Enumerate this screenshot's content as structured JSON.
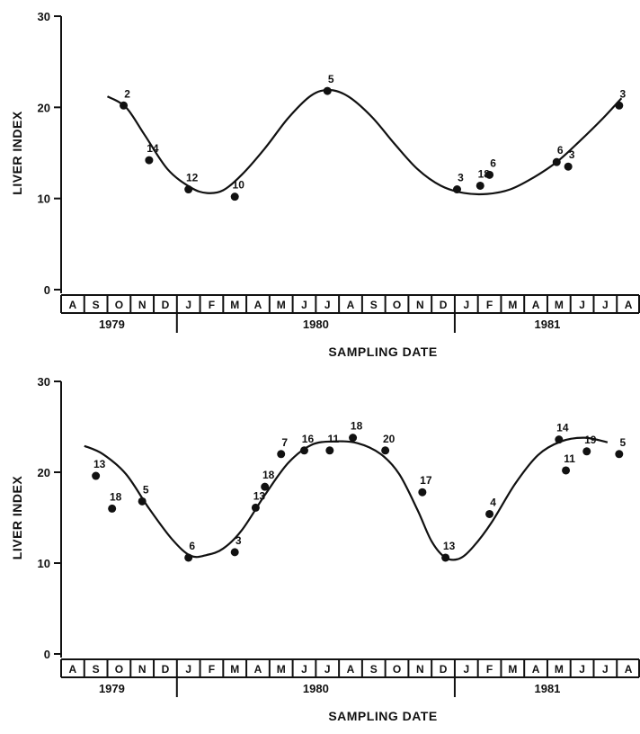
{
  "chart_data": [
    {
      "type": "scatter",
      "ylabel": "LIVER INDEX",
      "xlabel": "SAMPLING DATE",
      "ylim": [
        0,
        30
      ],
      "yticks": [
        "0",
        "10",
        "20",
        "30"
      ],
      "months": [
        "A",
        "S",
        "O",
        "N",
        "D",
        "J",
        "F",
        "M",
        "A",
        "M",
        "J",
        "J",
        "A",
        "S",
        "O",
        "N",
        "D",
        "J",
        "F",
        "M",
        "A",
        "M",
        "J",
        "J",
        "A"
      ],
      "years": [
        {
          "label": "1979",
          "start": 0,
          "end": 5
        },
        {
          "label": "1980",
          "start": 5,
          "end": 17
        },
        {
          "label": "1981",
          "start": 17,
          "end": 25
        }
      ],
      "points": [
        {
          "x": 2.7,
          "y": 20.2,
          "label": "2"
        },
        {
          "x": 3.8,
          "y": 14.2,
          "label": "14"
        },
        {
          "x": 5.5,
          "y": 11.0,
          "label": "12"
        },
        {
          "x": 7.5,
          "y": 10.2,
          "label": "10"
        },
        {
          "x": 11.5,
          "y": 21.8,
          "label": "5"
        },
        {
          "x": 17.1,
          "y": 11.0,
          "label": "3"
        },
        {
          "x": 18.1,
          "y": 11.4,
          "label": "18"
        },
        {
          "x": 18.5,
          "y": 12.6,
          "label": "6"
        },
        {
          "x": 21.4,
          "y": 14.0,
          "label": "6"
        },
        {
          "x": 21.9,
          "y": 13.5,
          "label": "3"
        },
        {
          "x": 24.1,
          "y": 20.2,
          "label": "3"
        }
      ],
      "curve": [
        [
          2.0,
          21.2
        ],
        [
          2.8,
          20.0
        ],
        [
          3.6,
          17.0
        ],
        [
          4.6,
          13.2
        ],
        [
          5.6,
          11.2
        ],
        [
          6.3,
          10.6
        ],
        [
          7.0,
          10.9
        ],
        [
          7.8,
          12.6
        ],
        [
          8.8,
          15.5
        ],
        [
          9.8,
          18.8
        ],
        [
          10.8,
          21.3
        ],
        [
          11.6,
          21.9
        ],
        [
          12.4,
          21.2
        ],
        [
          13.4,
          19.0
        ],
        [
          14.4,
          16.0
        ],
        [
          15.4,
          13.2
        ],
        [
          16.4,
          11.4
        ],
        [
          17.4,
          10.6
        ],
        [
          18.4,
          10.5
        ],
        [
          19.4,
          11.0
        ],
        [
          20.4,
          12.3
        ],
        [
          21.4,
          14.0
        ],
        [
          22.4,
          16.3
        ],
        [
          23.4,
          18.8
        ],
        [
          24.2,
          21.0
        ]
      ]
    },
    {
      "type": "scatter",
      "ylabel": "LIVER INDEX",
      "xlabel": "SAMPLING DATE",
      "ylim": [
        0,
        30
      ],
      "yticks": [
        "0",
        "10",
        "20",
        "30"
      ],
      "months": [
        "A",
        "S",
        "O",
        "N",
        "D",
        "J",
        "F",
        "M",
        "A",
        "M",
        "J",
        "J",
        "A",
        "S",
        "O",
        "N",
        "D",
        "J",
        "F",
        "M",
        "A",
        "M",
        "J",
        "J",
        "A"
      ],
      "years": [
        {
          "label": "1979",
          "start": 0,
          "end": 5
        },
        {
          "label": "1980",
          "start": 5,
          "end": 17
        },
        {
          "label": "1981",
          "start": 17,
          "end": 25
        }
      ],
      "points": [
        {
          "x": 1.5,
          "y": 19.6,
          "label": "13"
        },
        {
          "x": 2.2,
          "y": 16.0,
          "label": "18"
        },
        {
          "x": 3.5,
          "y": 16.8,
          "label": "5"
        },
        {
          "x": 5.5,
          "y": 10.6,
          "label": "6"
        },
        {
          "x": 7.5,
          "y": 11.2,
          "label": "3"
        },
        {
          "x": 8.4,
          "y": 16.1,
          "label": "13"
        },
        {
          "x": 8.8,
          "y": 18.4,
          "label": "18"
        },
        {
          "x": 9.5,
          "y": 22.0,
          "label": "7"
        },
        {
          "x": 10.5,
          "y": 22.4,
          "label": "16"
        },
        {
          "x": 11.6,
          "y": 22.4,
          "label": "11"
        },
        {
          "x": 12.6,
          "y": 23.8,
          "label": "18"
        },
        {
          "x": 14.0,
          "y": 22.4,
          "label": "20"
        },
        {
          "x": 15.6,
          "y": 17.8,
          "label": "17"
        },
        {
          "x": 16.6,
          "y": 10.6,
          "label": "13"
        },
        {
          "x": 18.5,
          "y": 15.4,
          "label": "4"
        },
        {
          "x": 21.5,
          "y": 23.6,
          "label": "14"
        },
        {
          "x": 21.8,
          "y": 20.2,
          "label": "11"
        },
        {
          "x": 22.7,
          "y": 22.3,
          "label": "19"
        },
        {
          "x": 24.1,
          "y": 22.0,
          "label": "5"
        }
      ],
      "curve": [
        [
          1.0,
          22.9
        ],
        [
          1.8,
          22.0
        ],
        [
          2.8,
          19.8
        ],
        [
          3.8,
          16.0
        ],
        [
          4.8,
          12.6
        ],
        [
          5.6,
          10.8
        ],
        [
          6.3,
          10.9
        ],
        [
          7.0,
          11.6
        ],
        [
          7.8,
          13.6
        ],
        [
          8.8,
          17.5
        ],
        [
          9.8,
          21.0
        ],
        [
          10.8,
          23.0
        ],
        [
          11.8,
          23.4
        ],
        [
          12.8,
          23.2
        ],
        [
          13.8,
          22.0
        ],
        [
          14.6,
          19.8
        ],
        [
          15.4,
          15.8
        ],
        [
          16.0,
          12.4
        ],
        [
          16.6,
          10.6
        ],
        [
          17.2,
          10.5
        ],
        [
          17.8,
          11.8
        ],
        [
          18.6,
          14.5
        ],
        [
          19.6,
          18.7
        ],
        [
          20.6,
          21.9
        ],
        [
          21.6,
          23.4
        ],
        [
          22.6,
          23.8
        ],
        [
          23.6,
          23.3
        ]
      ]
    }
  ]
}
